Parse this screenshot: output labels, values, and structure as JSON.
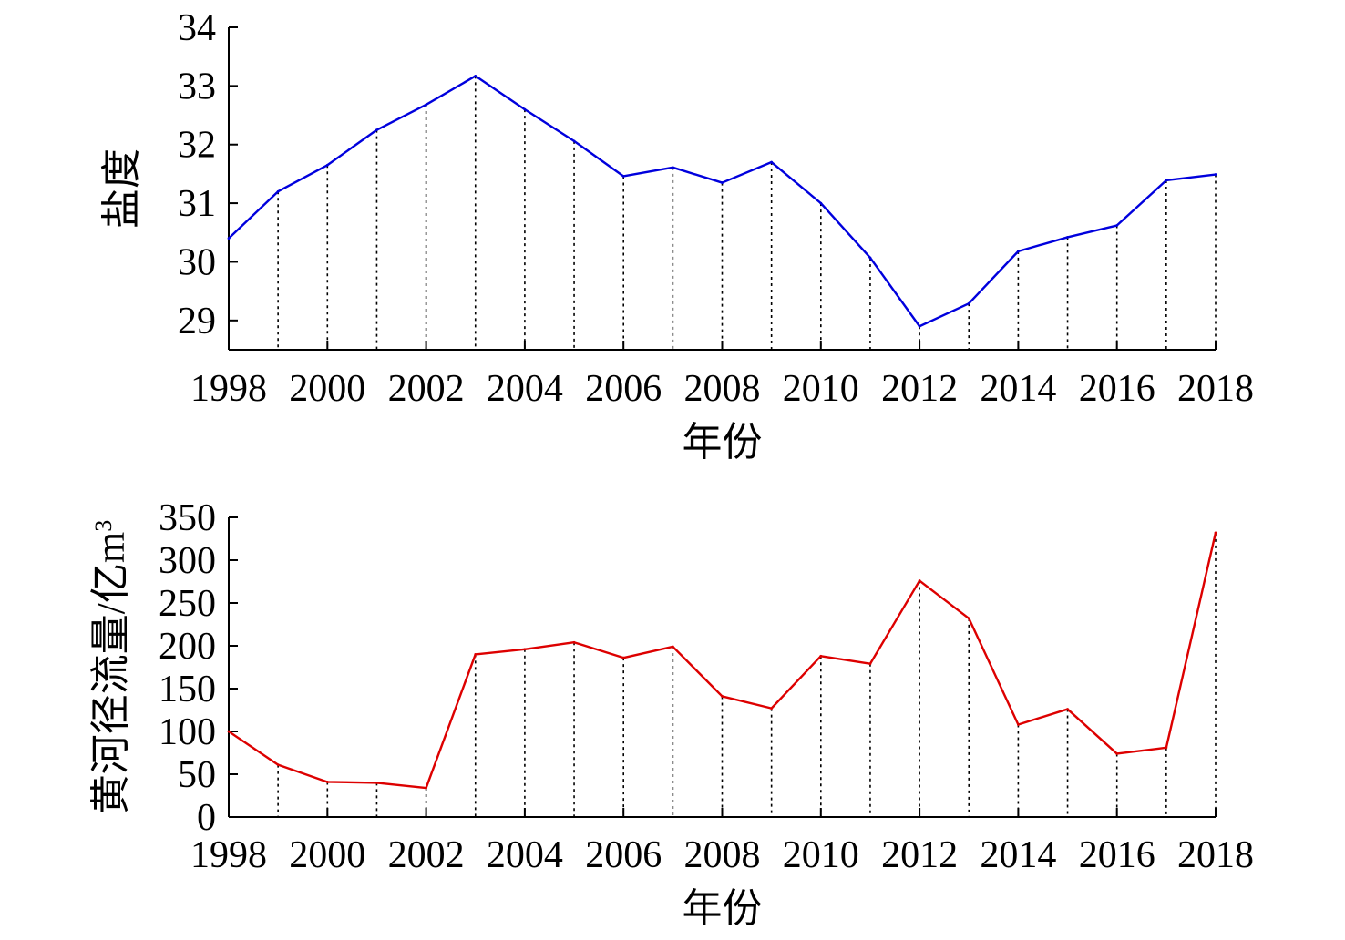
{
  "chart_data": [
    {
      "type": "line",
      "title": "",
      "xlabel": "年份",
      "ylabel": "盐度",
      "x": [
        1998,
        1999,
        2000,
        2001,
        2002,
        2003,
        2004,
        2005,
        2006,
        2007,
        2008,
        2009,
        2010,
        2011,
        2012,
        2013,
        2014,
        2015,
        2016,
        2017,
        2018
      ],
      "series": [
        {
          "color": "#0000dd",
          "values": [
            30.4,
            31.2,
            31.65,
            32.25,
            32.68,
            33.17,
            32.6,
            32.06,
            31.46,
            31.61,
            31.35,
            31.7,
            31.0,
            30.07,
            28.9,
            29.29,
            30.18,
            30.42,
            30.62,
            31.39,
            31.49
          ]
        }
      ],
      "xlim": [
        1998,
        2018
      ],
      "ylim": [
        28.5,
        34
      ],
      "xticks": [
        "1998",
        "2000",
        "2002",
        "2004",
        "2006",
        "2008",
        "2010",
        "2012",
        "2014",
        "2016",
        "2018"
      ],
      "yticks": [
        "29",
        "30",
        "31",
        "32",
        "33",
        "34"
      ],
      "grid": "dotted vertical drop lines at each year"
    },
    {
      "type": "line",
      "title": "",
      "xlabel": "年份",
      "ylabel": "黄河径流量/亿m",
      "ylabel_superscript": "3",
      "x": [
        1998,
        1999,
        2000,
        2001,
        2002,
        2003,
        2004,
        2005,
        2006,
        2007,
        2008,
        2009,
        2010,
        2011,
        2012,
        2013,
        2014,
        2015,
        2016,
        2017,
        2018
      ],
      "series": [
        {
          "color": "#dd0000",
          "values": [
            100,
            61,
            41,
            40,
            34,
            190,
            196,
            204,
            186,
            199,
            141,
            127,
            188,
            179,
            276,
            232,
            108,
            126,
            74,
            81,
            332
          ]
        }
      ],
      "xlim": [
        1998,
        2018
      ],
      "ylim": [
        0,
        350
      ],
      "xticks": [
        "1998",
        "2000",
        "2002",
        "2004",
        "2006",
        "2008",
        "2010",
        "2012",
        "2014",
        "2016",
        "2018"
      ],
      "yticks": [
        "0",
        "50",
        "100",
        "150",
        "200",
        "250",
        "300",
        "350"
      ],
      "grid": "dotted vertical drop lines at each year"
    }
  ]
}
